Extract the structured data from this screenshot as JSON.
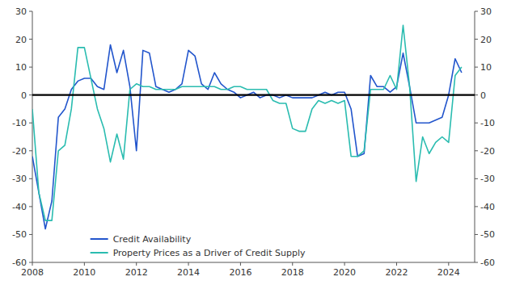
{
  "chart_data": {
    "type": "line",
    "x": [
      2008.0,
      2008.25,
      2008.5,
      2008.75,
      2009.0,
      2009.25,
      2009.5,
      2009.75,
      2010.0,
      2010.25,
      2010.5,
      2010.75,
      2011.0,
      2011.25,
      2011.5,
      2011.75,
      2012.0,
      2012.25,
      2012.5,
      2012.75,
      2013.0,
      2013.25,
      2013.5,
      2013.75,
      2014.0,
      2014.25,
      2014.5,
      2014.75,
      2015.0,
      2015.25,
      2015.5,
      2015.75,
      2016.0,
      2016.25,
      2016.5,
      2016.75,
      2017.0,
      2017.25,
      2017.5,
      2017.75,
      2018.0,
      2018.25,
      2018.5,
      2018.75,
      2019.0,
      2019.25,
      2019.5,
      2019.75,
      2020.0,
      2020.25,
      2020.5,
      2020.75,
      2021.0,
      2021.25,
      2021.5,
      2021.75,
      2022.0,
      2022.25,
      2022.5,
      2022.75,
      2023.0,
      2023.25,
      2023.5,
      2023.75,
      2024.0,
      2024.25,
      2024.5
    ],
    "series": [
      {
        "name": "Credit Availability",
        "color": "#2255cc",
        "values": [
          -22,
          -35,
          -48,
          -38,
          -8,
          -5,
          2,
          5,
          6,
          6,
          3,
          2,
          18,
          8,
          16,
          3,
          -20,
          16,
          15,
          3,
          2,
          1,
          2,
          4,
          16,
          14,
          4,
          2,
          8,
          4,
          2,
          1,
          -1,
          0,
          1,
          -1,
          0,
          0,
          -1,
          0,
          -1,
          -1,
          -1,
          -1,
          0,
          1,
          0,
          1,
          1,
          -5,
          -22,
          -21,
          7,
          3,
          3,
          1,
          3,
          15,
          3,
          -10,
          -10,
          -10,
          -9,
          -8,
          0,
          13,
          8
        ]
      },
      {
        "name": "Property Prices as a Driver of Credit Supply",
        "color": "#2abcb0",
        "values": [
          -5,
          -35,
          -45,
          -45,
          -20,
          -18,
          -5,
          17,
          17,
          6,
          -5,
          -12,
          -24,
          -14,
          -23,
          2,
          4,
          3,
          3,
          2,
          2,
          2,
          2,
          3,
          3,
          3,
          3,
          3,
          3,
          2,
          2,
          3,
          3,
          2,
          2,
          2,
          2,
          -2,
          -3,
          -3,
          -12,
          -13,
          -13,
          -5,
          -2,
          -3,
          -2,
          -3,
          -2,
          -22,
          -22,
          -20,
          2,
          2,
          2,
          7,
          2,
          25,
          3,
          -31,
          -15,
          -21,
          -17,
          -15,
          -17,
          7,
          10
        ]
      }
    ],
    "xlim": [
      2008,
      2025
    ],
    "xticks": [
      2008,
      2010,
      2012,
      2014,
      2016,
      2018,
      2020,
      2022,
      2024
    ],
    "ylim": [
      -60,
      30
    ],
    "yticks": [
      -60,
      -50,
      -40,
      -30,
      -20,
      -10,
      0,
      10,
      20,
      30
    ],
    "y2lim": [
      -60,
      30
    ],
    "y2ticks": [
      -60,
      -50,
      -40,
      -30,
      -20,
      -10,
      0,
      10,
      20,
      30
    ],
    "legend": "lower left",
    "grid": false
  }
}
